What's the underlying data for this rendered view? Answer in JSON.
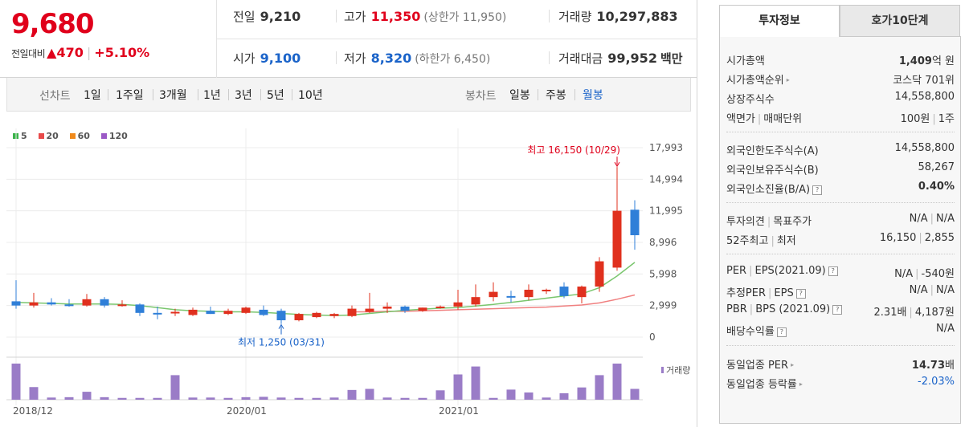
{
  "price": {
    "current": "9,680",
    "change_label": "전일대비",
    "change_arrow": "▲",
    "change_amount": "470",
    "change_rate": "+5.10%"
  },
  "stats": {
    "prev_label": "전일",
    "prev_value": "9,210",
    "high_label": "고가",
    "high_value": "11,350",
    "upper_limit": "(상한가 11,950)",
    "volume_label": "거래량",
    "volume_value": "10,297,883",
    "open_label": "시가",
    "open_value": "9,100",
    "low_label": "저가",
    "low_value": "8,320",
    "lower_limit": "(하한가 6,450)",
    "amount_label": "거래대금",
    "amount_value": "99,952",
    "amount_unit": "백만"
  },
  "period_bar": {
    "line_title": "선차트",
    "line_options": [
      "1일",
      "1주일",
      "3개월",
      "1년",
      "3년",
      "5년",
      "10년"
    ],
    "candle_title": "봉차트",
    "candle_options": [
      "일봉",
      "주봉",
      "월봉"
    ],
    "candle_selected": "월봉"
  },
  "legend": [
    {
      "label": "5",
      "color": "#3bb34a"
    },
    {
      "label": "20",
      "color": "#e84a4a"
    },
    {
      "label": "60",
      "color": "#f08a1c"
    },
    {
      "label": "120",
      "color": "#9b59c6"
    }
  ],
  "chart_data": {
    "type": "candlestick",
    "y_ticks": [
      "17,993",
      "14,994",
      "11,995",
      "8,996",
      "5,998",
      "2,999",
      "0"
    ],
    "ylim": [
      0,
      17993
    ],
    "x_labels": [
      {
        "label": "2018/12",
        "index": 0
      },
      {
        "label": "2020/01",
        "index": 13
      },
      {
        "label": "2021/01",
        "index": 25
      }
    ],
    "max_annotation": "최고 16,150 (10/29)",
    "min_annotation": "최저 1,250 (03/31)",
    "volume_label": "거래량",
    "candles": [
      {
        "o": 3400,
        "h": 5400,
        "l": 2700,
        "c": 3000
      },
      {
        "o": 3000,
        "h": 4200,
        "l": 2800,
        "c": 3300
      },
      {
        "o": 3300,
        "h": 3700,
        "l": 3000,
        "c": 3100
      },
      {
        "o": 3100,
        "h": 3600,
        "l": 2900,
        "c": 3000
      },
      {
        "o": 3000,
        "h": 4100,
        "l": 2900,
        "c": 3600
      },
      {
        "o": 3600,
        "h": 3800,
        "l": 2800,
        "c": 3000
      },
      {
        "o": 3000,
        "h": 3500,
        "l": 2900,
        "c": 3100
      },
      {
        "o": 3100,
        "h": 3200,
        "l": 2000,
        "c": 2300
      },
      {
        "o": 2300,
        "h": 2900,
        "l": 1700,
        "c": 2200
      },
      {
        "o": 2300,
        "h": 2700,
        "l": 2000,
        "c": 2400
      },
      {
        "o": 2100,
        "h": 2800,
        "l": 2000,
        "c": 2600
      },
      {
        "o": 2500,
        "h": 2900,
        "l": 2200,
        "c": 2200
      },
      {
        "o": 2200,
        "h": 2700,
        "l": 2100,
        "c": 2500
      },
      {
        "o": 2300,
        "h": 2900,
        "l": 2200,
        "c": 2800
      },
      {
        "o": 2600,
        "h": 3000,
        "l": 2000,
        "c": 2100
      },
      {
        "o": 2500,
        "h": 2700,
        "l": 1250,
        "c": 1600
      },
      {
        "o": 1600,
        "h": 2300,
        "l": 1500,
        "c": 2200
      },
      {
        "o": 1900,
        "h": 2400,
        "l": 1800,
        "c": 2300
      },
      {
        "o": 2000,
        "h": 2300,
        "l": 1800,
        "c": 2200
      },
      {
        "o": 2000,
        "h": 3000,
        "l": 1900,
        "c": 2700
      },
      {
        "o": 2400,
        "h": 4200,
        "l": 2300,
        "c": 2700
      },
      {
        "o": 2700,
        "h": 3300,
        "l": 2300,
        "c": 2900
      },
      {
        "o": 2900,
        "h": 3000,
        "l": 2300,
        "c": 2500
      },
      {
        "o": 2500,
        "h": 2800,
        "l": 2400,
        "c": 2800
      },
      {
        "o": 2800,
        "h": 3000,
        "l": 2700,
        "c": 2900
      },
      {
        "o": 2900,
        "h": 4500,
        "l": 2600,
        "c": 3300
      },
      {
        "o": 3100,
        "h": 5000,
        "l": 2900,
        "c": 3800
      },
      {
        "o": 3800,
        "h": 5200,
        "l": 3400,
        "c": 4300
      },
      {
        "o": 3900,
        "h": 4400,
        "l": 3300,
        "c": 3800
      },
      {
        "o": 3800,
        "h": 5000,
        "l": 3500,
        "c": 4500
      },
      {
        "o": 4500,
        "h": 4600,
        "l": 4100,
        "c": 4500
      },
      {
        "o": 4800,
        "h": 5200,
        "l": 3700,
        "c": 3900
      },
      {
        "o": 3800,
        "h": 4900,
        "l": 3200,
        "c": 4800
      },
      {
        "o": 4800,
        "h": 7600,
        "l": 4300,
        "c": 7200
      },
      {
        "o": 6600,
        "h": 16150,
        "l": 6300,
        "c": 12000
      },
      {
        "o": 12100,
        "h": 13000,
        "l": 8300,
        "c": 9680
      }
    ],
    "ma5": [
      3300,
      3250,
      3200,
      3150,
      3150,
      3150,
      3100,
      3000,
      2800,
      2600,
      2500,
      2450,
      2400,
      2400,
      2350,
      2250,
      2150,
      2100,
      2050,
      2100,
      2250,
      2400,
      2550,
      2650,
      2750,
      2800,
      2950,
      3100,
      3300,
      3500,
      3700,
      3900,
      4100,
      4700,
      5800,
      7100
    ],
    "ma20": [
      null,
      null,
      null,
      null,
      null,
      null,
      null,
      null,
      null,
      null,
      null,
      null,
      null,
      null,
      null,
      null,
      null,
      null,
      null,
      2400,
      2400,
      2450,
      2450,
      2500,
      2550,
      2600,
      2650,
      2700,
      2750,
      2800,
      2850,
      2950,
      3050,
      3250,
      3600,
      4000
    ],
    "volume": [
      100,
      35,
      6,
      7,
      22,
      7,
      5,
      5,
      5,
      68,
      6,
      6,
      5,
      7,
      8,
      6,
      5,
      5,
      6,
      27,
      30,
      6,
      5,
      5,
      26,
      70,
      92,
      5,
      28,
      20,
      6,
      18,
      34,
      68,
      100,
      30
    ]
  },
  "tabs": {
    "invest_info": "투자정보",
    "hoga": "호가10단계"
  },
  "info": {
    "market_cap_label": "시가총액",
    "market_cap_value": "1,409",
    "market_cap_unit": "억 원",
    "market_cap_rank_label": "시가총액순위",
    "market_cap_rank_value": "코스닥 701위",
    "listed_shares_label": "상장주식수",
    "listed_shares_value": "14,558,800",
    "par_label": "액면가",
    "trade_unit_label": "매매단위",
    "par_value": "100원",
    "trade_unit_value": "1주",
    "foreign_limit_label": "외국인한도주식수(A)",
    "foreign_limit_value": "14,558,800",
    "foreign_hold_label": "외국인보유주식수(B)",
    "foreign_hold_value": "58,267",
    "foreign_rate_label": "외국인소진율(B/A)",
    "foreign_rate_value": "0.40%",
    "opinion_label": "투자의견",
    "target_label": "목표주가",
    "opinion_value": "N/A",
    "target_value": "N/A",
    "high52_label": "52주최고",
    "low52_label": "최저",
    "high52_value": "16,150",
    "low52_value": "2,855",
    "per_label": "PER",
    "eps_label": "EPS(2021.09)",
    "per_value": "N/A",
    "eps_value": "-540원",
    "est_per_label": "추정PER",
    "est_eps_label": "EPS",
    "est_per_value": "N/A",
    "est_eps_value": "N/A",
    "pbr_label": "PBR",
    "bps_label": "BPS (2021.09)",
    "pbr_value": "2.31배",
    "bps_value": "4,187원",
    "div_label": "배당수익률",
    "div_value": "N/A",
    "ind_per_label": "동일업종 PER",
    "ind_per_value": "14.73",
    "ind_per_unit": "배",
    "ind_rate_label": "동일업종 등락률",
    "ind_rate_value": "-2.03%"
  },
  "icons": {
    "help": "?",
    "arrow": "▸"
  }
}
